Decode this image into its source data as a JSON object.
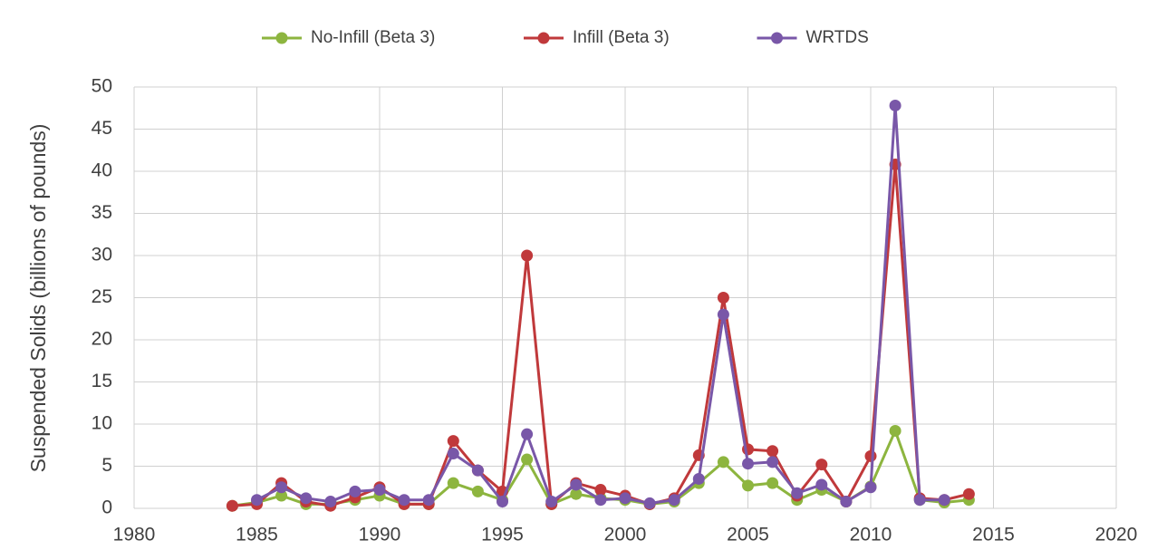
{
  "chart_data": {
    "type": "line",
    "y_label": "Suspended Solids (billions of pounds)",
    "x": [
      1984,
      1985,
      1986,
      1987,
      1988,
      1989,
      1990,
      1991,
      1992,
      1993,
      1994,
      1995,
      1996,
      1997,
      1998,
      1999,
      2000,
      2001,
      2002,
      2003,
      2004,
      2005,
      2006,
      2007,
      2008,
      2009,
      2010,
      2011,
      2012,
      2013,
      2014
    ],
    "series": [
      {
        "name": "No-Infill (Beta 3)",
        "color": "#8db53f",
        "values": [
          0.3,
          0.7,
          1.5,
          0.5,
          0.5,
          1.0,
          1.5,
          0.5,
          0.5,
          3.0,
          2.0,
          1.0,
          5.8,
          0.5,
          1.7,
          1.2,
          1.0,
          0.5,
          0.8,
          3.0,
          5.5,
          2.7,
          3.0,
          1.0,
          2.2,
          0.8,
          2.6,
          9.2,
          1.0,
          0.7,
          1.0
        ]
      },
      {
        "name": "Infill (Beta 3)",
        "color": "#c0393b",
        "values": [
          0.3,
          0.5,
          3.0,
          0.8,
          0.3,
          1.3,
          2.5,
          0.5,
          0.5,
          8.0,
          4.5,
          2.0,
          30.0,
          0.5,
          3.0,
          2.2,
          1.5,
          0.5,
          1.2,
          6.3,
          25.0,
          7.0,
          6.8,
          1.5,
          5.2,
          0.8,
          6.2,
          40.8,
          1.2,
          1.0,
          1.7
        ]
      },
      {
        "name": "WRTDS",
        "color": "#7957a8",
        "values": [
          null,
          1.0,
          2.5,
          1.2,
          0.8,
          2.0,
          2.2,
          1.0,
          1.0,
          6.5,
          4.5,
          0.8,
          8.8,
          0.8,
          2.8,
          1.0,
          1.2,
          0.6,
          1.0,
          3.5,
          23.0,
          5.3,
          5.5,
          1.8,
          2.8,
          0.8,
          2.5,
          47.8,
          1.0,
          1.0,
          null
        ]
      }
    ],
    "xlim": [
      1980,
      2020
    ],
    "xticks": [
      1980,
      1985,
      1990,
      1995,
      2000,
      2005,
      2010,
      2015,
      2020
    ],
    "ylim": [
      0,
      50
    ],
    "yticks": [
      0,
      5,
      10,
      15,
      20,
      25,
      30,
      35,
      40,
      45,
      50
    ],
    "grid": true,
    "legend": "top"
  }
}
